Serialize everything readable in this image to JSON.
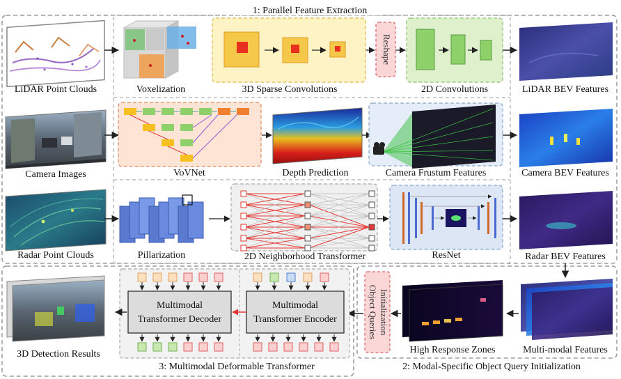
{
  "sections": {
    "s1": "1: Parallel Feature Extraction",
    "s2": "2: Modal-Specific Object Query Initialization",
    "s3": "3:   Multimodal Deformable Transformer"
  },
  "inputs": {
    "lidar": "LiDAR Point Clouds",
    "camera": "Camera Images",
    "radar": "Radar Point Clouds"
  },
  "lidar_branch": {
    "voxelization": "Voxelization",
    "sparse": "3D Sparse Convolutions",
    "reshape": "Reshape",
    "conv2d": "2D Convolutions"
  },
  "camera_branch": {
    "vovnet": "VoVNet",
    "depth": "Depth Prediction",
    "frustum": "Camera Frustum Features"
  },
  "radar_branch": {
    "pillar": "Pillarization",
    "neighborhood": "2D Neighborhood Transformer",
    "resnet": "ResNet"
  },
  "bev": {
    "lidar": "LiDAR BEV Features",
    "camera": "Camera BEV Features",
    "radar": "Radar BEV Features"
  },
  "query": {
    "init_line1": "Object Queries",
    "init_line2": "Initialization",
    "high_response": "High Response Zones",
    "multimodal": "Multi-modal Features"
  },
  "transformer": {
    "decoder_line1": "Multimodal",
    "decoder_line2": "Transformer Decoder",
    "encoder_line1": "Multimodal",
    "encoder_line2": "Transformer Encoder"
  },
  "output": {
    "detection": "3D Detection Results"
  }
}
